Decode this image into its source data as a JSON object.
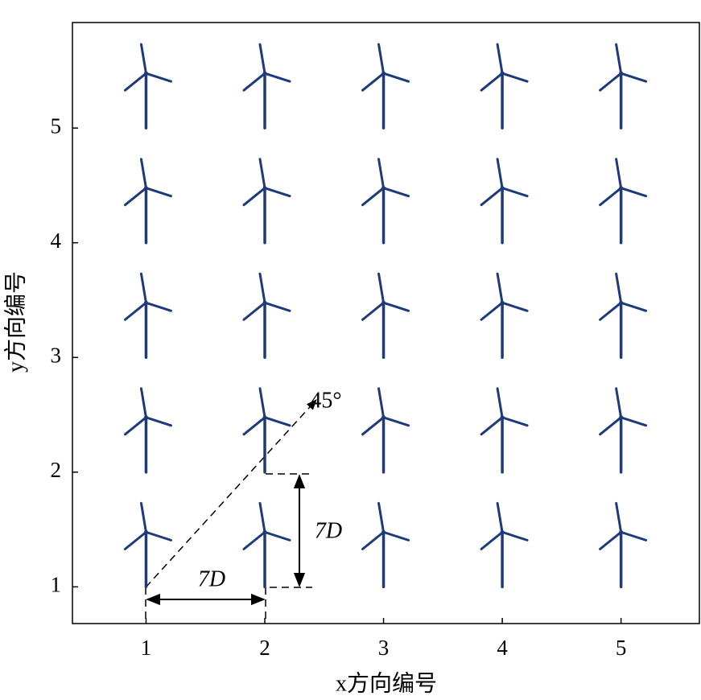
{
  "chart_data": {
    "type": "scatter",
    "x_label": "x方向编号",
    "y_label": "y方向编号",
    "x": [
      1,
      2,
      3,
      4,
      5,
      1,
      2,
      3,
      4,
      5,
      1,
      2,
      3,
      4,
      5,
      1,
      2,
      3,
      4,
      5,
      1,
      2,
      3,
      4,
      5
    ],
    "y": [
      1,
      1,
      1,
      1,
      1,
      2,
      2,
      2,
      2,
      2,
      3,
      3,
      3,
      3,
      3,
      4,
      4,
      4,
      4,
      4,
      5,
      5,
      5,
      5,
      5
    ],
    "color": "#1f3a7a",
    "xlim": [
      0.38,
      5.66
    ],
    "ylim": [
      0.68,
      5.92
    ],
    "xticks": [
      1,
      2,
      3,
      4,
      5
    ],
    "yticks": [
      1,
      2,
      3,
      4,
      5
    ],
    "annotations": [
      "45°",
      "7D",
      "7D"
    ]
  }
}
